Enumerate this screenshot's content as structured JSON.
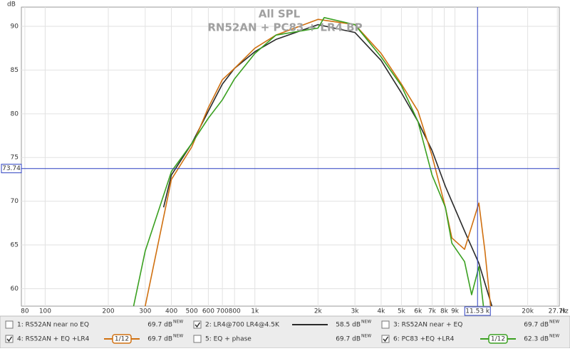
{
  "chart_data": {
    "type": "line",
    "title": "All SPL",
    "subtitle": "RN52AN + PC83 + LR4 BP",
    "y_unit": "dB",
    "x_unit": "Hz",
    "log_x": true,
    "grid": true,
    "xlim": [
      77,
      28300
    ],
    "ylim": [
      58,
      92.2
    ],
    "xticks": [
      80,
      100,
      200,
      300,
      400,
      500,
      600,
      700,
      800,
      {
        "value": 1000,
        "label": "1k"
      },
      {
        "value": 2000,
        "label": "2k"
      },
      {
        "value": 3000,
        "label": "3k"
      },
      {
        "value": 4000,
        "label": "4k"
      },
      {
        "value": 5000,
        "label": "5k"
      },
      {
        "value": 6000,
        "label": "6k"
      },
      {
        "value": 7000,
        "label": "7k"
      },
      {
        "value": 8000,
        "label": "8k"
      },
      {
        "value": 9000,
        "label": "9k"
      },
      {
        "value": 20000,
        "label": "20k"
      },
      {
        "value": 27700,
        "label": "27.7k"
      }
    ],
    "yticks": [
      60,
      65,
      70,
      75,
      80,
      85,
      90
    ],
    "cursor": {
      "y": 73.74,
      "x": {
        "value": 11530,
        "label": "11.53 k"
      },
      "color": "#2b3fc0"
    },
    "series": [
      {
        "name": "1: RS52AN near no  EQ",
        "color": "#4a5fc8",
        "checked": false,
        "level": "69.7 dB",
        "badge": "NEW"
      },
      {
        "name": "2: LR4@700 LR4@4.5K",
        "color": "#2a2a2a",
        "checked": true,
        "level": "58.5 dB",
        "badge": "NEW",
        "x": [
          367,
          400,
          500,
          600,
          700,
          800,
          1000,
          1260,
          2000,
          3000,
          4000,
          5000,
          6000,
          7000,
          8100,
          10000,
          11700,
          13500
        ],
        "values": [
          69.3,
          73,
          76.6,
          80.3,
          83.4,
          85.2,
          87.1,
          88.5,
          90.2,
          89.3,
          86.1,
          82.4,
          79.1,
          75.8,
          71.7,
          66.6,
          62.9,
          58
        ]
      },
      {
        "name": "3: RS52AN near + EQ",
        "color": "#c0209a",
        "checked": false,
        "level": "69.7 dB",
        "badge": "NEW"
      },
      {
        "name": "4: RS52AN + EQ +LR4",
        "color": "#d07010",
        "checked": true,
        "level": "69.7 dB",
        "badge": "NEW",
        "smoothing": "1/12",
        "x": [
          300,
          400,
          500,
          600,
          700,
          800,
          1000,
          1260,
          2000,
          3000,
          4000,
          5000,
          6000,
          7000,
          8100,
          8700,
          10000,
          11700,
          12500,
          13300
        ],
        "values": [
          58,
          72.5,
          76.2,
          80.7,
          83.9,
          85.2,
          87.5,
          89,
          90.8,
          90.2,
          86.9,
          83.4,
          80.3,
          75.2,
          69.3,
          65.8,
          64.5,
          69.8,
          64.3,
          58
        ]
      },
      {
        "name": "5: EQ + phase",
        "color": "#8a30b0",
        "checked": false,
        "level": "69.7 dB",
        "badge": "NEW"
      },
      {
        "name": "6: PC83 +EQ +LR4",
        "color": "#3aa020",
        "checked": true,
        "level": "62.3 dB",
        "badge": "NEW",
        "smoothing": "1/12",
        "x": [
          264,
          300,
          400,
          500,
          600,
          700,
          800,
          1000,
          1260,
          2000,
          2140,
          3000,
          4000,
          5000,
          6000,
          7000,
          8100,
          8700,
          10000,
          10800,
          11700,
          12300
        ],
        "values": [
          58,
          64.3,
          73.4,
          76.6,
          79.5,
          81.6,
          84,
          86.9,
          89,
          89.8,
          91,
          90.2,
          86.5,
          83.2,
          79.1,
          73,
          69.3,
          65.2,
          63.1,
          59.3,
          62.5,
          58
        ]
      }
    ]
  }
}
